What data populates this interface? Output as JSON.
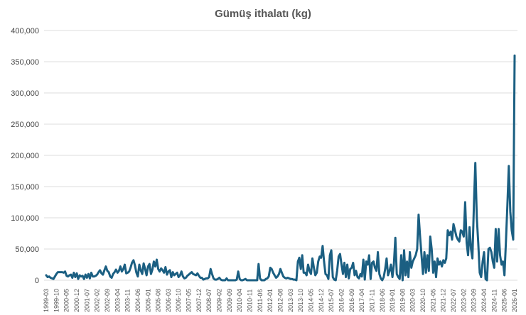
{
  "chart_data": {
    "type": "line",
    "title": "Gümüş ithalatı (kg)",
    "xlabel": "",
    "ylabel": "",
    "x_start": "1999-03",
    "frequency": "monthly",
    "ylim": [
      0,
      400000
    ],
    "y_ticks": [
      "0",
      "50,000",
      "100,000",
      "150,000",
      "200,000",
      "250,000",
      "300,000",
      "350,000",
      "400,000"
    ],
    "x_tick_labels": [
      "1999-03",
      "1999-10",
      "2000-05",
      "2000-12",
      "2001-07",
      "2002-02",
      "2002-09",
      "2003-04",
      "2003-11",
      "2004-06",
      "2005-01",
      "2005-08",
      "2006-03",
      "2006-10",
      "2007-05",
      "2007-12",
      "2008-07",
      "2009-02",
      "2009-09",
      "2010-04",
      "2010-11",
      "2011-06",
      "2012-01",
      "2012-08",
      "2013-03",
      "2013-10",
      "2014-05",
      "2014-12",
      "2015-07",
      "2016-02",
      "2016-09",
      "2017-04",
      "2017-11",
      "2018-06",
      "2019-01",
      "2019-08",
      "2020-03",
      "2020-10",
      "2021-05",
      "2021-12",
      "2022-07",
      "2023-02",
      "2023-09",
      "2024-04",
      "2024-11",
      "2025-06",
      "2026-01"
    ],
    "grid": true,
    "legend": "none",
    "line_color": "#1b5f82",
    "values": [
      8000,
      5000,
      6000,
      4000,
      3000,
      2000,
      6000,
      10000,
      13000,
      13000,
      13000,
      13000,
      12000,
      14000,
      7000,
      6000,
      8000,
      9000,
      4000,
      12000,
      5000,
      11000,
      2000,
      8000,
      6000,
      7000,
      2000,
      9000,
      4000,
      10000,
      3000,
      12000,
      6000,
      6000,
      7000,
      9000,
      13000,
      16000,
      11000,
      9000,
      16000,
      22000,
      15000,
      13000,
      6000,
      4000,
      10000,
      13000,
      17000,
      12000,
      15000,
      22000,
      14000,
      18000,
      25000,
      11000,
      12000,
      14000,
      20000,
      28000,
      32000,
      24000,
      12000,
      6000,
      25000,
      16000,
      10000,
      27000,
      18000,
      8000,
      22000,
      26000,
      10000,
      17000,
      30000,
      22000,
      33000,
      18000,
      14000,
      19000,
      16000,
      12000,
      21000,
      9000,
      14000,
      16000,
      5000,
      13000,
      8000,
      10000,
      12000,
      5000,
      8000,
      14000,
      6000,
      3000,
      4000,
      7000,
      9000,
      11000,
      13000,
      10000,
      9000,
      8000,
      11000,
      7000,
      4000,
      4000,
      1000,
      2000,
      3000,
      3000,
      5000,
      18000,
      10000,
      3000,
      1000,
      1000,
      2000,
      4000,
      1000,
      0,
      0,
      0,
      3000,
      0,
      0,
      0,
      0,
      0,
      0,
      1000,
      14000,
      2000,
      0,
      0,
      1000,
      2000,
      0,
      0,
      0,
      0,
      0,
      0,
      0,
      0,
      26000,
      3000,
      0,
      0,
      0,
      2000,
      3000,
      6000,
      20000,
      18000,
      12000,
      8000,
      4000,
      6000,
      10000,
      18000,
      12000,
      6000,
      4000,
      3000,
      4000,
      3000,
      2000,
      2000,
      1000,
      1000,
      0,
      30000,
      36000,
      18000,
      40000,
      12000,
      12000,
      8000,
      25000,
      15000,
      10000,
      35000,
      20000,
      8000,
      12000,
      30000,
      38000,
      36000,
      55000,
      30000,
      10000,
      8000,
      2000,
      40000,
      48000,
      5000,
      1000,
      0,
      15000,
      38000,
      42000,
      25000,
      10000,
      28000,
      5000,
      25000,
      3000,
      18000,
      20000,
      28000,
      8000,
      15000,
      5000,
      3000,
      10000,
      6000,
      33000,
      1000,
      30000,
      25000,
      40000,
      2000,
      28000,
      30000,
      20000,
      15000,
      45000,
      10000,
      3000,
      0,
      5000,
      18000,
      35000,
      8000,
      15000,
      25000,
      5000,
      25000,
      68000,
      10000,
      5000,
      2000,
      40000,
      0,
      48000,
      8000,
      30000,
      5000,
      45000,
      20000,
      30000,
      35000,
      40000,
      50000,
      105000,
      70000,
      40000,
      10000,
      45000,
      12000,
      40000,
      15000,
      70000,
      50000,
      12000,
      30000,
      5000,
      35000,
      25000,
      30000,
      22000,
      32000,
      28000,
      35000,
      80000,
      72000,
      78000,
      65000,
      90000,
      80000,
      70000,
      65000,
      62000,
      80000,
      78000,
      70000,
      125000,
      60000,
      40000,
      85000,
      50000,
      35000,
      120000,
      188000,
      100000,
      60000,
      12000,
      5000,
      30000,
      45000,
      2000,
      0,
      50000,
      52000,
      45000,
      30000,
      20000,
      82000,
      30000,
      82000,
      40000,
      25000,
      30000,
      8000,
      60000,
      120000,
      183000,
      110000,
      80000,
      65000,
      360000
    ]
  }
}
